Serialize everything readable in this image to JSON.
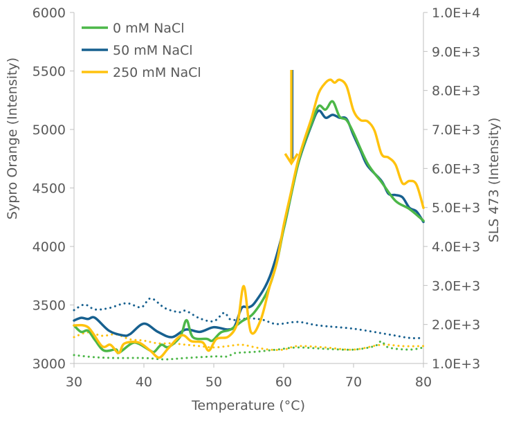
{
  "chart_data": {
    "type": "line",
    "xlabel": "Temperature (°C)",
    "ylabel": "Sypro Orange (Intensity)",
    "y2label": "SLS 473 (Intensity)",
    "xlim": [
      30,
      80
    ],
    "ylim": [
      3000,
      6000
    ],
    "y2lim": [
      1000,
      10000
    ],
    "xticks": [
      "30",
      "40",
      "50",
      "60",
      "70",
      "80"
    ],
    "yticks": [
      "3000",
      "3500",
      "4000",
      "4500",
      "5000",
      "5500",
      "6000"
    ],
    "y2ticks": [
      "1.0E+3",
      "2.0E+3",
      "3.0E+3",
      "4.0E+3",
      "5.0E+3",
      "6.0E+3",
      "7.0E+3",
      "8.0E+3",
      "9.0E+3",
      "1.0E+4"
    ],
    "grid": false,
    "legend_position": "top-left",
    "annotation": {
      "type": "down-arrow",
      "x": 61.1
    },
    "series": [
      {
        "name": "0 mM NaCl",
        "color": "#4cb748",
        "axis": "left",
        "style": "solid",
        "points": [
          [
            30,
            3325
          ],
          [
            31,
            3270
          ],
          [
            32,
            3280
          ],
          [
            33,
            3200
          ],
          [
            34.3,
            3110
          ],
          [
            36,
            3120
          ],
          [
            36.4,
            3090
          ],
          [
            38.2,
            3170
          ],
          [
            39.2,
            3170
          ],
          [
            40.9,
            3110
          ],
          [
            41.5,
            3100
          ],
          [
            42.5,
            3160
          ],
          [
            43.5,
            3140
          ],
          [
            45.2,
            3230
          ],
          [
            46.1,
            3370
          ],
          [
            47,
            3225
          ],
          [
            49,
            3210
          ],
          [
            49.8,
            3195
          ],
          [
            51,
            3265
          ],
          [
            52.4,
            3290
          ],
          [
            54,
            3360
          ],
          [
            55.7,
            3430
          ],
          [
            57.7,
            3620
          ],
          [
            59,
            3860
          ],
          [
            60,
            4150
          ],
          [
            62,
            4690
          ],
          [
            63,
            4890
          ],
          [
            64,
            5050
          ],
          [
            65,
            5200
          ],
          [
            66,
            5170
          ],
          [
            67,
            5240
          ],
          [
            68,
            5110
          ],
          [
            69,
            5080
          ],
          [
            70,
            4970
          ],
          [
            72,
            4710
          ],
          [
            74,
            4550
          ],
          [
            76,
            4390
          ],
          [
            78,
            4320
          ],
          [
            80,
            4220
          ]
        ]
      },
      {
        "name": "50 mM NaCl",
        "color": "#17608f",
        "axis": "left",
        "style": "solid",
        "points": [
          [
            30,
            3367
          ],
          [
            31,
            3390
          ],
          [
            32,
            3380
          ],
          [
            33,
            3390
          ],
          [
            35,
            3280
          ],
          [
            37,
            3240
          ],
          [
            38,
            3250
          ],
          [
            40,
            3340
          ],
          [
            42,
            3270
          ],
          [
            44,
            3225
          ],
          [
            46,
            3290
          ],
          [
            48,
            3270
          ],
          [
            50,
            3310
          ],
          [
            52,
            3290
          ],
          [
            53,
            3320
          ],
          [
            54,
            3475
          ],
          [
            55,
            3480
          ],
          [
            56,
            3530
          ],
          [
            58,
            3740
          ],
          [
            60,
            4150
          ],
          [
            62,
            4690
          ],
          [
            64,
            5040
          ],
          [
            65,
            5160
          ],
          [
            66,
            5100
          ],
          [
            67,
            5125
          ],
          [
            68,
            5100
          ],
          [
            69,
            5090
          ],
          [
            70,
            4950
          ],
          [
            71,
            4820
          ],
          [
            72,
            4690
          ],
          [
            74,
            4560
          ],
          [
            75,
            4450
          ],
          [
            76,
            4440
          ],
          [
            77,
            4420
          ],
          [
            78,
            4330
          ],
          [
            79,
            4300
          ],
          [
            80,
            4210
          ]
        ]
      },
      {
        "name": "250 mM NaCl",
        "color": "#ffc20e",
        "axis": "left",
        "style": "solid",
        "points": [
          [
            30,
            3325
          ],
          [
            32,
            3310
          ],
          [
            34,
            3148
          ],
          [
            35.2,
            3160
          ],
          [
            36.4,
            3090
          ],
          [
            37.2,
            3170
          ],
          [
            39.2,
            3180
          ],
          [
            40.9,
            3110
          ],
          [
            42.2,
            3050
          ],
          [
            43.5,
            3130
          ],
          [
            45.4,
            3240
          ],
          [
            46.8,
            3190
          ],
          [
            48.4,
            3180
          ],
          [
            49.3,
            3110
          ],
          [
            50.4,
            3210
          ],
          [
            52.1,
            3230
          ],
          [
            53.4,
            3350
          ],
          [
            54.3,
            3660
          ],
          [
            55.3,
            3270
          ],
          [
            56.7,
            3370
          ],
          [
            58,
            3660
          ],
          [
            59,
            3860
          ],
          [
            60,
            4180
          ],
          [
            61,
            4450
          ],
          [
            62,
            4720
          ],
          [
            63,
            4920
          ],
          [
            64,
            5100
          ],
          [
            65,
            5310
          ],
          [
            66,
            5400
          ],
          [
            66.7,
            5425
          ],
          [
            67.3,
            5400
          ],
          [
            68,
            5425
          ],
          [
            69,
            5370
          ],
          [
            70,
            5160
          ],
          [
            71,
            5080
          ],
          [
            72,
            5070
          ],
          [
            73,
            4990
          ],
          [
            74,
            4790
          ],
          [
            75,
            4760
          ],
          [
            76,
            4700
          ],
          [
            77,
            4540
          ],
          [
            78,
            4560
          ],
          [
            79,
            4530
          ],
          [
            80,
            4330
          ]
        ]
      },
      {
        "color": "#17608f",
        "axis": "right",
        "style": "dotted",
        "points": [
          [
            30,
            2367
          ],
          [
            31.5,
            2510
          ],
          [
            33,
            2385
          ],
          [
            35,
            2420
          ],
          [
            37.5,
            2545
          ],
          [
            39.6,
            2440
          ],
          [
            41,
            2670
          ],
          [
            43,
            2420
          ],
          [
            45,
            2315
          ],
          [
            46,
            2350
          ],
          [
            48,
            2155
          ],
          [
            50,
            2085
          ],
          [
            51.5,
            2300
          ],
          [
            52.5,
            2120
          ],
          [
            55,
            2155
          ],
          [
            57,
            2120
          ],
          [
            59,
            2010
          ],
          [
            62,
            2065
          ],
          [
            65,
            1975
          ],
          [
            70,
            1890
          ],
          [
            75,
            1745
          ],
          [
            78,
            1655
          ],
          [
            80,
            1655
          ]
        ]
      },
      {
        "color": "#ffc20e",
        "axis": "right",
        "style": "dotted",
        "points": [
          [
            30,
            1675
          ],
          [
            32,
            1800
          ],
          [
            34,
            1710
          ],
          [
            36,
            1745
          ],
          [
            38,
            1620
          ],
          [
            40,
            1585
          ],
          [
            42,
            1515
          ],
          [
            44,
            1515
          ],
          [
            46,
            1480
          ],
          [
            48,
            1445
          ],
          [
            50,
            1410
          ],
          [
            52,
            1445
          ],
          [
            54,
            1480
          ],
          [
            56,
            1410
          ],
          [
            58,
            1355
          ],
          [
            60,
            1355
          ],
          [
            62,
            1445
          ],
          [
            66,
            1410
          ],
          [
            70,
            1355
          ],
          [
            74,
            1480
          ],
          [
            77,
            1445
          ],
          [
            80,
            1445
          ]
        ]
      },
      {
        "color": "#4cb748",
        "axis": "right",
        "style": "dotted",
        "points": [
          [
            30,
            1215
          ],
          [
            33,
            1160
          ],
          [
            36,
            1140
          ],
          [
            40,
            1140
          ],
          [
            43,
            1105
          ],
          [
            46,
            1140
          ],
          [
            50,
            1180
          ],
          [
            52,
            1180
          ],
          [
            53,
            1265
          ],
          [
            56,
            1300
          ],
          [
            59,
            1355
          ],
          [
            62,
            1410
          ],
          [
            66,
            1375
          ],
          [
            70,
            1355
          ],
          [
            73,
            1445
          ],
          [
            74,
            1570
          ],
          [
            75,
            1410
          ],
          [
            78,
            1355
          ],
          [
            80,
            1410
          ]
        ]
      }
    ]
  }
}
